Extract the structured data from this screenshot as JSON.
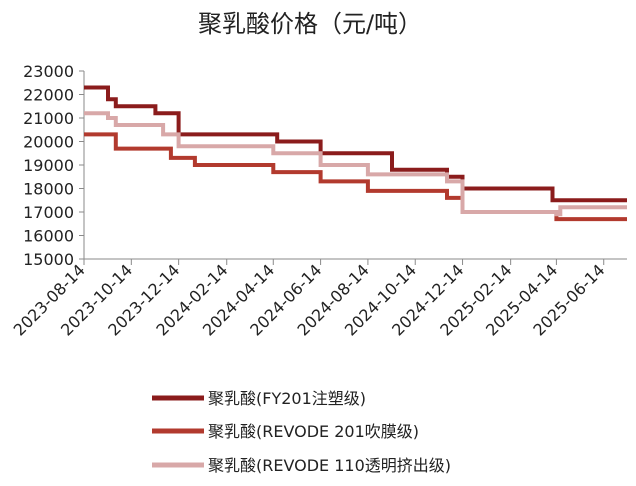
{
  "chart_data": {
    "type": "line",
    "title": "聚乳酸价格（元/吨）",
    "xlabel": "",
    "ylabel": "",
    "ylim": [
      15000,
      23000
    ],
    "yticks": [
      15000,
      16000,
      17000,
      18000,
      19000,
      20000,
      21000,
      22000,
      23000
    ],
    "xlim": [
      "2023-08-14",
      "2025-07-14"
    ],
    "xticks": [
      "2023-08-14",
      "2023-10-14",
      "2023-12-14",
      "2024-02-14",
      "2024-04-14",
      "2024-06-14",
      "2024-08-14",
      "2024-10-14",
      "2024-12-14",
      "2025-02-14",
      "2025-04-14",
      "2025-06-14"
    ],
    "grid": false,
    "legend_position": "bottom",
    "step": true,
    "series": [
      {
        "name": "聚乳酸(FY201注塑级)",
        "color": "#8B1C1C",
        "points": [
          [
            "2023-08-14",
            22300
          ],
          [
            "2023-09-14",
            21800
          ],
          [
            "2023-09-24",
            21500
          ],
          [
            "2023-11-14",
            21200
          ],
          [
            "2023-12-14",
            20300
          ],
          [
            "2024-04-19",
            20000
          ],
          [
            "2024-06-14",
            19500
          ],
          [
            "2024-09-14",
            18800
          ],
          [
            "2024-11-24",
            18500
          ],
          [
            "2024-12-14",
            18000
          ],
          [
            "2025-04-09",
            17500
          ],
          [
            "2025-07-14",
            17500
          ]
        ]
      },
      {
        "name": "聚乳酸(REVODE 201吹膜级)",
        "color": "#B23A2E",
        "points": [
          [
            "2023-08-14",
            20300
          ],
          [
            "2023-09-24",
            19700
          ],
          [
            "2023-12-04",
            19300
          ],
          [
            "2024-01-04",
            19000
          ],
          [
            "2024-04-14",
            18700
          ],
          [
            "2024-06-14",
            18300
          ],
          [
            "2024-08-14",
            17900
          ],
          [
            "2024-11-24",
            17600
          ],
          [
            "2024-12-14",
            17000
          ],
          [
            "2025-04-14",
            16700
          ],
          [
            "2025-07-14",
            16700
          ]
        ]
      },
      {
        "name": "聚乳酸(REVODE 110透明挤出级)",
        "color": "#D8A8A8",
        "points": [
          [
            "2023-08-14",
            21200
          ],
          [
            "2023-09-14",
            21000
          ],
          [
            "2023-09-24",
            20700
          ],
          [
            "2023-11-24",
            20300
          ],
          [
            "2023-12-14",
            19800
          ],
          [
            "2024-04-14",
            19500
          ],
          [
            "2024-06-14",
            19000
          ],
          [
            "2024-08-14",
            18600
          ],
          [
            "2024-11-24",
            18300
          ],
          [
            "2024-12-14",
            17000
          ],
          [
            "2025-04-14",
            16900
          ],
          [
            "2025-04-19",
            17200
          ],
          [
            "2025-07-14",
            17200
          ]
        ]
      }
    ]
  }
}
